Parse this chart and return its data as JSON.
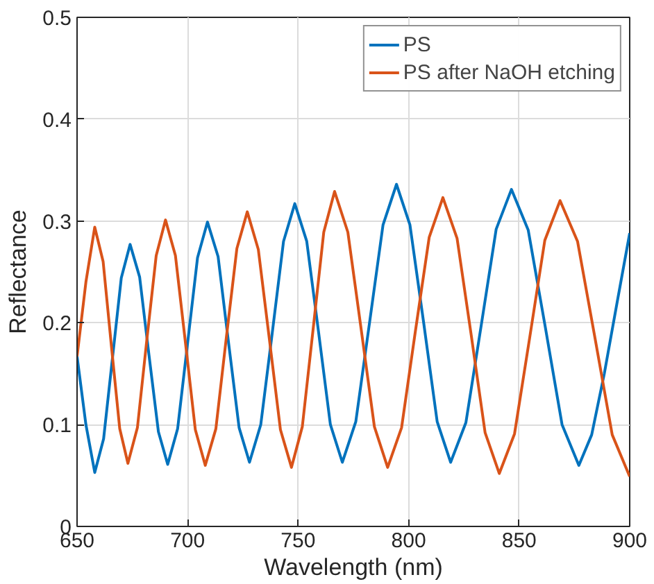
{
  "chart_data": {
    "type": "line",
    "xlabel": "Wavelength (nm)",
    "ylabel": "Reflectance",
    "xlim": [
      650,
      900
    ],
    "ylim": [
      0,
      0.5
    ],
    "xticks": [
      650,
      700,
      750,
      800,
      850,
      900
    ],
    "yticks": [
      0,
      0.1,
      0.2,
      0.3,
      0.4,
      0.5
    ],
    "grid": true,
    "legend": "top right",
    "line_style": "solid",
    "marker": "none",
    "series": [
      {
        "name": "PS",
        "color": "#0072bd",
        "x": [
          650,
          654,
          658,
          662,
          666,
          670,
          674,
          678.3,
          682.5,
          686.8,
          691,
          695.5,
          700,
          704.5,
          709,
          713.8,
          718.5,
          723.3,
          728,
          733.1,
          738.3,
          743.4,
          748.5,
          753.9,
          759.3,
          764.6,
          770,
          776.1,
          782.3,
          788.4,
          794.5,
          800.6,
          806.8,
          812.9,
          819,
          825.9,
          832.8,
          839.6,
          846.5,
          854.1,
          861.8,
          869.4,
          877,
          882.8,
          888.5,
          894.3,
          900
        ],
        "values": [
          0.167,
          0.1,
          0.053,
          0.086,
          0.165,
          0.244,
          0.277,
          0.245,
          0.169,
          0.093,
          0.061,
          0.096,
          0.18,
          0.264,
          0.299,
          0.265,
          0.181,
          0.097,
          0.063,
          0.1,
          0.19,
          0.28,
          0.317,
          0.28,
          0.19,
          0.1,
          0.063,
          0.103,
          0.2,
          0.296,
          0.336,
          0.296,
          0.2,
          0.103,
          0.063,
          0.102,
          0.197,
          0.292,
          0.331,
          0.291,
          0.196,
          0.1,
          0.06,
          0.09,
          0.15,
          0.22,
          0.288
        ]
      },
      {
        "name": "PS after NaOH etching",
        "color": "#d95319",
        "x": [
          650,
          654,
          658,
          661.8,
          665.5,
          669.3,
          673,
          677.3,
          681.5,
          685.8,
          690,
          694.5,
          699,
          703.5,
          708,
          712.8,
          717.5,
          722.3,
          727,
          732,
          737,
          742,
          747,
          751.9,
          756.8,
          761.6,
          766.5,
          772.5,
          778.5,
          784.5,
          790.5,
          796.8,
          803,
          809.3,
          815.5,
          821.9,
          828.3,
          834.6,
          841,
          847.9,
          854.8,
          861.6,
          868.5,
          876.4,
          884.3,
          892.1,
          900
        ],
        "values": [
          0.167,
          0.24,
          0.294,
          0.26,
          0.178,
          0.096,
          0.062,
          0.097,
          0.182,
          0.266,
          0.301,
          0.266,
          0.181,
          0.095,
          0.06,
          0.096,
          0.185,
          0.273,
          0.309,
          0.272,
          0.184,
          0.095,
          0.058,
          0.098,
          0.194,
          0.289,
          0.329,
          0.289,
          0.194,
          0.098,
          0.058,
          0.097,
          0.191,
          0.284,
          0.323,
          0.283,
          0.188,
          0.092,
          0.052,
          0.091,
          0.186,
          0.281,
          0.32,
          0.28,
          0.185,
          0.09,
          0.049
        ]
      }
    ]
  }
}
